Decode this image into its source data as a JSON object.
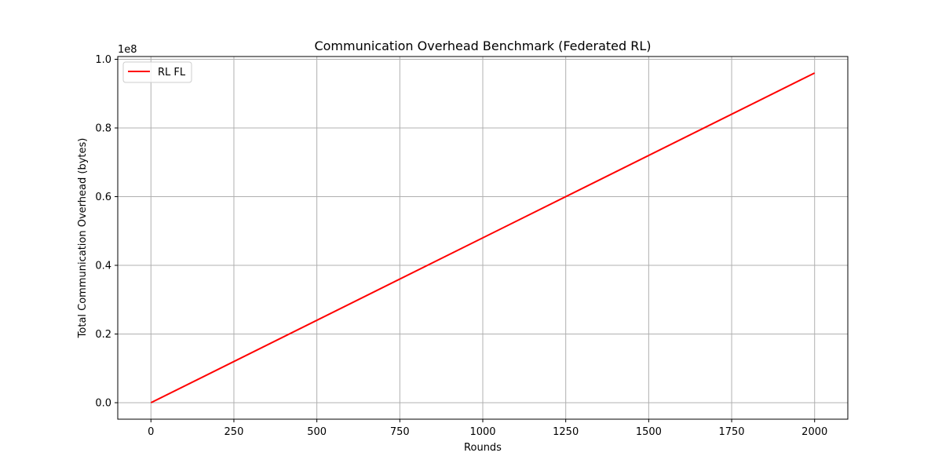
{
  "chart_data": {
    "type": "line",
    "title": "Communication Overhead Benchmark (Federated RL)",
    "xlabel": "Rounds",
    "ylabel": "Total Communication Overhead (bytes)",
    "y_offset_label": "1e8",
    "xlim": [
      -100,
      2100
    ],
    "ylim": [
      -0.048,
      1.008
    ],
    "x_ticks": [
      0,
      250,
      500,
      750,
      1000,
      1250,
      1500,
      1750,
      2000
    ],
    "x_tick_labels": [
      "0",
      "250",
      "500",
      "750",
      "1000",
      "1250",
      "1500",
      "1750",
      "2000"
    ],
    "y_ticks": [
      0.0,
      0.2,
      0.4,
      0.6,
      0.8,
      1.0
    ],
    "y_tick_labels": [
      "0.0",
      "0.2",
      "0.4",
      "0.6",
      "0.8",
      "1.0"
    ],
    "grid": true,
    "legend_position": "top-left",
    "series": [
      {
        "name": "RL FL",
        "color": "#ff0000",
        "x": [
          0,
          2000
        ],
        "y": [
          0.0,
          0.96
        ]
      }
    ]
  }
}
